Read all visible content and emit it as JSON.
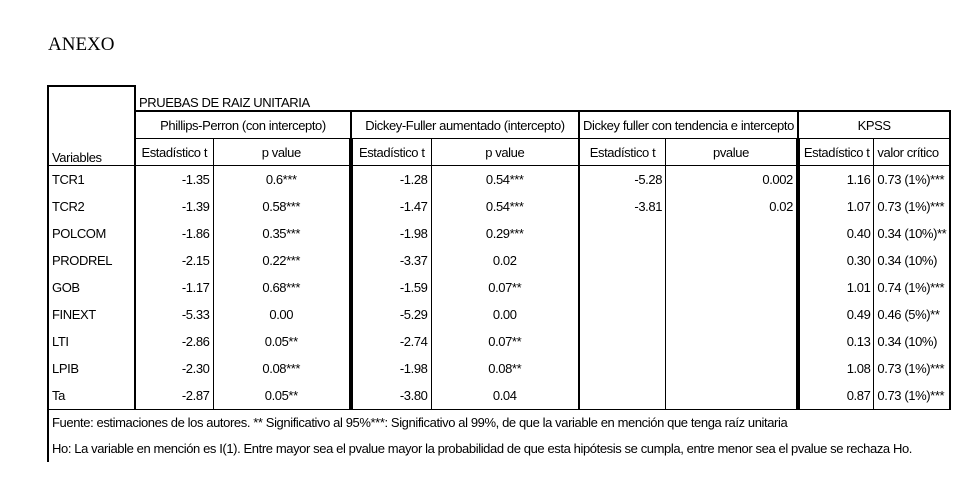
{
  "heading": "ANEXO",
  "table": {
    "title": "PRUEBAS DE RAIZ UNITARIA",
    "groups": [
      "Phillips-Perron (con intercepto)",
      "Dickey-Fuller aumentado (intercepto)",
      "Dickey fuller con tendencia e intercepto",
      "KPSS"
    ],
    "columns": [
      "Variables",
      "Estadístico t",
      "p value",
      "Estadístico t",
      "p value",
      "Estadístico t",
      "pvalue",
      "Estadístico t",
      "valor crítico"
    ],
    "rows": [
      [
        "TCR1",
        "-1.35",
        "0.6***",
        "-1.28",
        "0.54***",
        "-5.28",
        "0.002",
        "1.16",
        "0.73 (1%)***"
      ],
      [
        "TCR2",
        "-1.39",
        "0.58***",
        "-1.47",
        "0.54***",
        "-3.81",
        "0.02",
        "1.07",
        "0.73 (1%)***"
      ],
      [
        "POLCOM",
        "-1.86",
        "0.35***",
        "-1.98",
        "0.29***",
        "",
        "",
        "0.40",
        "0.34 (10%)**"
      ],
      [
        "PRODREL",
        "-2.15",
        "0.22***",
        "-3.37",
        "0.02",
        "",
        "",
        "0.30",
        "0.34 (10%)"
      ],
      [
        "GOB",
        "-1.17",
        "0.68***",
        "-1.59",
        "0.07**",
        "",
        "",
        "1.01",
        "0.74 (1%)***"
      ],
      [
        "FINEXT",
        "-5.33",
        "0.00",
        "-5.29",
        "0.00",
        "",
        "",
        "0.49",
        "0.46 (5%)**"
      ],
      [
        "LTI",
        "-2.86",
        "0.05**",
        "-2.74",
        "0.07**",
        "",
        "",
        "0.13",
        "0.34 (10%)"
      ],
      [
        "LPIB",
        "-2.30",
        "0.08***",
        "-1.98",
        "0.08**",
        "",
        "",
        "1.08",
        "0.73 (1%)***"
      ],
      [
        "Ta",
        "-2.87",
        "0.05**",
        "-3.80",
        "0.04",
        "",
        "",
        "0.87",
        "0.73 (1%)***"
      ]
    ]
  },
  "footnotes": [
    "Fuente: estimaciones de los autores. ** Significativo al 95%***: Significativo al 99%,  de que la variable en mención que tenga raíz unitaria",
    "Ho: La variable en mención es I(1). Entre mayor sea el pvalue mayor la probabilidad de que esta hipótesis se cumpla, entre menor sea el pvalue se rechaza Ho."
  ]
}
